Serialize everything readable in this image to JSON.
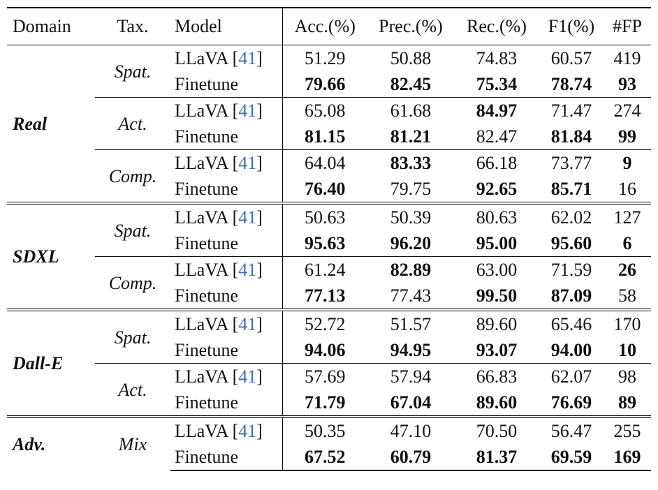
{
  "headers": [
    "Domain",
    "Tax.",
    "Model",
    "Acc.(%)",
    "Prec.(%)",
    "Rec.(%)",
    "F1(%)",
    "#FP"
  ],
  "cite": "41",
  "rows": [
    {
      "domain": "Real",
      "tax": "Spat.",
      "model": "LLaVA",
      "cite": true,
      "vals": [
        "51.29",
        "50.88",
        "74.83",
        "60.57",
        "419"
      ],
      "bold": [
        false,
        false,
        false,
        false,
        false
      ]
    },
    {
      "model": "Finetune",
      "vals": [
        "79.66",
        "82.45",
        "75.34",
        "78.74",
        "93"
      ],
      "bold": [
        true,
        true,
        true,
        true,
        true
      ]
    },
    {
      "tax": "Act.",
      "model": "LLaVA",
      "cite": true,
      "vals": [
        "65.08",
        "61.68",
        "84.97",
        "71.47",
        "274"
      ],
      "bold": [
        false,
        false,
        true,
        false,
        false
      ]
    },
    {
      "model": "Finetune",
      "vals": [
        "81.15",
        "81.21",
        "82.47",
        "81.84",
        "99"
      ],
      "bold": [
        true,
        true,
        false,
        true,
        true
      ]
    },
    {
      "tax": "Comp.",
      "model": "LLaVA",
      "cite": true,
      "vals": [
        "64.04",
        "83.33",
        "66.18",
        "73.77",
        "9"
      ],
      "bold": [
        false,
        true,
        false,
        false,
        true
      ]
    },
    {
      "model": "Finetune",
      "vals": [
        "76.40",
        "79.75",
        "92.65",
        "85.71",
        "16"
      ],
      "bold": [
        true,
        false,
        true,
        true,
        false
      ]
    },
    {
      "domain": "SDXL",
      "tax": "Spat.",
      "model": "LLaVA",
      "cite": true,
      "vals": [
        "50.63",
        "50.39",
        "80.63",
        "62.02",
        "127"
      ],
      "bold": [
        false,
        false,
        false,
        false,
        false
      ]
    },
    {
      "model": "Finetune",
      "vals": [
        "95.63",
        "96.20",
        "95.00",
        "95.60",
        "6"
      ],
      "bold": [
        true,
        true,
        true,
        true,
        true
      ]
    },
    {
      "tax": "Comp.",
      "model": "LLaVA",
      "cite": true,
      "vals": [
        "61.24",
        "82.89",
        "63.00",
        "71.59",
        "26"
      ],
      "bold": [
        false,
        true,
        false,
        false,
        true
      ]
    },
    {
      "model": "Finetune",
      "vals": [
        "77.13",
        "77.43",
        "99.50",
        "87.09",
        "58"
      ],
      "bold": [
        true,
        false,
        true,
        true,
        false
      ]
    },
    {
      "domain": "Dall-E",
      "tax": "Spat.",
      "model": "LLaVA",
      "cite": true,
      "vals": [
        "52.72",
        "51.57",
        "89.60",
        "65.46",
        "170"
      ],
      "bold": [
        false,
        false,
        false,
        false,
        false
      ]
    },
    {
      "model": "Finetune",
      "vals": [
        "94.06",
        "94.95",
        "93.07",
        "94.00",
        "10"
      ],
      "bold": [
        true,
        true,
        true,
        true,
        true
      ]
    },
    {
      "tax": "Act.",
      "model": "LLaVA",
      "cite": true,
      "vals": [
        "57.69",
        "57.94",
        "66.83",
        "62.07",
        "98"
      ],
      "bold": [
        false,
        false,
        false,
        false,
        false
      ]
    },
    {
      "model": "Finetune",
      "vals": [
        "71.79",
        "67.04",
        "89.60",
        "76.69",
        "89"
      ],
      "bold": [
        true,
        true,
        true,
        true,
        true
      ]
    },
    {
      "domain": "Adv.",
      "tax": "Mix",
      "model": "LLaVA",
      "cite": true,
      "vals": [
        "50.35",
        "47.10",
        "70.50",
        "56.47",
        "255"
      ],
      "bold": [
        false,
        false,
        false,
        false,
        false
      ]
    },
    {
      "model": "Finetune",
      "vals": [
        "67.52",
        "60.79",
        "81.37",
        "69.59",
        "169"
      ],
      "bold": [
        true,
        true,
        true,
        true,
        true
      ]
    }
  ]
}
